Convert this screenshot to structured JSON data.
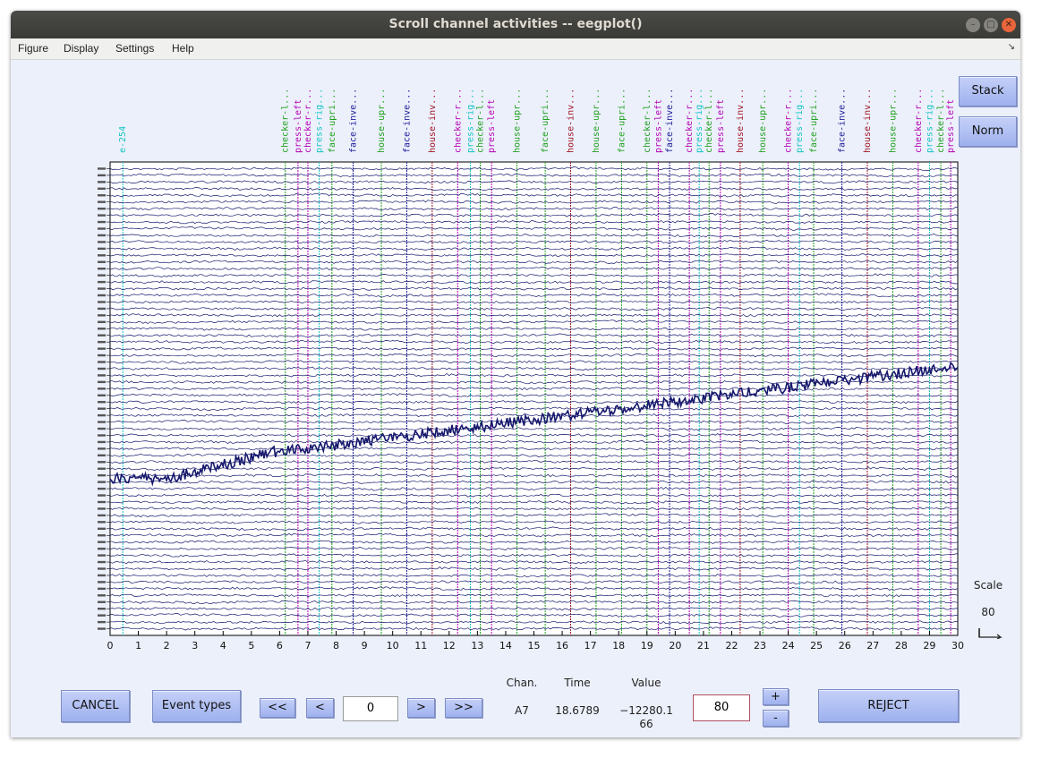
{
  "window": {
    "title": "Scroll channel activities -- eegplot()"
  },
  "menu": {
    "items": [
      "Figure",
      "Display",
      "Settings",
      "Help"
    ],
    "expander": "↘"
  },
  "side_buttons": {
    "stack": "Stack",
    "norm": "Norm"
  },
  "scale": {
    "label": "Scale",
    "value": "80"
  },
  "controls": {
    "cancel": "CANCEL",
    "event_types": "Event types",
    "rewind_fast": "<<",
    "rewind": "<",
    "position_value": "0",
    "forward": ">",
    "forward_fast": ">>",
    "chan_header": "Chan.",
    "time_header": "Time",
    "value_header": "Value",
    "chan_value": "A7",
    "time_value": "18.6789",
    "value_line1": "−12280.1",
    "value_line2": "66",
    "scale_input": "80",
    "plus": "+",
    "minus": "-",
    "reject": "REJECT"
  },
  "colors": {
    "trace": "#16186c",
    "face": "#1ea01e",
    "house": "#a01424",
    "checker": "#b400b4",
    "press": "#12c4c4",
    "misc": "#1a1a96",
    "window_bg": "#ecf0fb"
  },
  "chart_data": {
    "type": "line",
    "xlabel": "",
    "ylabel": "",
    "x_ticks": [
      0,
      1,
      2,
      3,
      4,
      5,
      6,
      7,
      8,
      9,
      10,
      11,
      12,
      13,
      14,
      15,
      16,
      17,
      18,
      19,
      20,
      21,
      22,
      23,
      24,
      25,
      26,
      27,
      28,
      29,
      30
    ],
    "xlim": [
      0,
      30
    ],
    "n_channels": 70,
    "scale": 80,
    "events": [
      {
        "t": 0.45,
        "label": "e-254",
        "color": "press"
      },
      {
        "t": 6.2,
        "label": "checker-l...",
        "color": "face"
      },
      {
        "t": 6.65,
        "label": "press-left",
        "color": "checker"
      },
      {
        "t": 7.0,
        "label": "checker-r...",
        "color": "checker"
      },
      {
        "t": 7.4,
        "label": "press-rig...",
        "color": "press"
      },
      {
        "t": 7.85,
        "label": "face-upri...",
        "color": "face"
      },
      {
        "t": 8.6,
        "label": "face-inve...",
        "color": "misc"
      },
      {
        "t": 9.6,
        "label": "house-upr...",
        "color": "face"
      },
      {
        "t": 10.5,
        "label": "face-inve...",
        "color": "misc"
      },
      {
        "t": 11.4,
        "label": "house-inv...",
        "color": "house"
      },
      {
        "t": 12.3,
        "label": "checker-r...",
        "color": "checker"
      },
      {
        "t": 12.75,
        "label": "press-rig...",
        "color": "press"
      },
      {
        "t": 13.1,
        "label": "checker-l...",
        "color": "face"
      },
      {
        "t": 13.5,
        "label": "press-left",
        "color": "checker"
      },
      {
        "t": 14.4,
        "label": "house-upr...",
        "color": "face"
      },
      {
        "t": 15.4,
        "label": "face-upri...",
        "color": "face"
      },
      {
        "t": 16.3,
        "label": "house-inv...",
        "color": "house"
      },
      {
        "t": 17.2,
        "label": "house-upr...",
        "color": "face"
      },
      {
        "t": 18.1,
        "label": "face-upri...",
        "color": "face"
      },
      {
        "t": 19.0,
        "label": "checker-l...",
        "color": "face"
      },
      {
        "t": 19.4,
        "label": "press-left",
        "color": "checker"
      },
      {
        "t": 19.8,
        "label": "face-inve...",
        "color": "misc"
      },
      {
        "t": 20.5,
        "label": "checker-r...",
        "color": "checker"
      },
      {
        "t": 20.85,
        "label": "press-rig...",
        "color": "press"
      },
      {
        "t": 21.2,
        "label": "checker-l...",
        "color": "face"
      },
      {
        "t": 21.6,
        "label": "press-left",
        "color": "checker"
      },
      {
        "t": 22.3,
        "label": "house-inv...",
        "color": "house"
      },
      {
        "t": 23.1,
        "label": "house-upr...",
        "color": "face"
      },
      {
        "t": 24.0,
        "label": "checker-r...",
        "color": "checker"
      },
      {
        "t": 24.4,
        "label": "press-rig...",
        "color": "press"
      },
      {
        "t": 24.9,
        "label": "face-upri...",
        "color": "face"
      },
      {
        "t": 25.9,
        "label": "face-inve...",
        "color": "misc"
      },
      {
        "t": 26.8,
        "label": "house-inv...",
        "color": "house"
      },
      {
        "t": 27.7,
        "label": "house-upr...",
        "color": "face"
      },
      {
        "t": 28.6,
        "label": "checker-r...",
        "color": "checker"
      },
      {
        "t": 29.0,
        "label": "press-rig...",
        "color": "press"
      },
      {
        "t": 29.4,
        "label": "checker-l...",
        "color": "face"
      },
      {
        "t": 29.75,
        "label": "press-left",
        "color": "checker"
      }
    ]
  }
}
